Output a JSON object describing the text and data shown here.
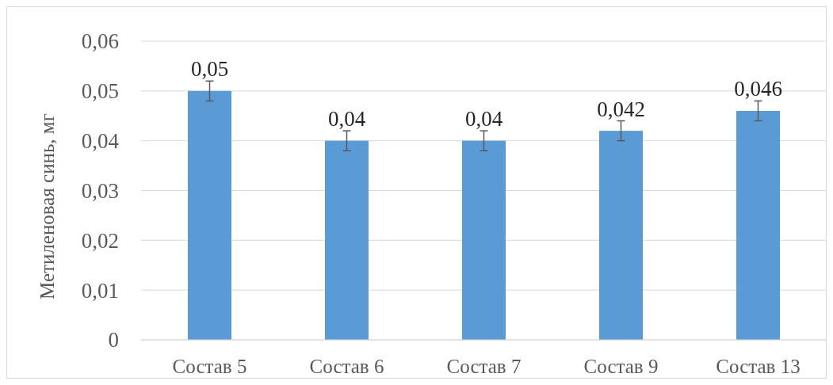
{
  "chart_data": {
    "type": "bar",
    "ylabel": "Метиленовая синь, мг",
    "categories": [
      "Состав 5",
      "Состав 6",
      "Состав 7",
      "Состав 9",
      "Состав 13"
    ],
    "values": [
      0.05,
      0.04,
      0.04,
      0.042,
      0.046
    ],
    "errors": [
      0.002,
      0.002,
      0.002,
      0.002,
      0.002
    ],
    "value_labels": [
      "0,05",
      "0,04",
      "0,04",
      "0,042",
      "0,046"
    ],
    "color": "#5b9bd5",
    "ylim": [
      0,
      0.06
    ],
    "yticks": [
      {
        "value": 0,
        "label": "0"
      },
      {
        "value": 0.01,
        "label": "0,01"
      },
      {
        "value": 0.02,
        "label": "0,02"
      },
      {
        "value": 0.03,
        "label": "0,03"
      },
      {
        "value": 0.04,
        "label": "0,04"
      },
      {
        "value": 0.05,
        "label": "0,05"
      },
      {
        "value": 0.06,
        "label": "0,06"
      }
    ],
    "grid": "y"
  }
}
